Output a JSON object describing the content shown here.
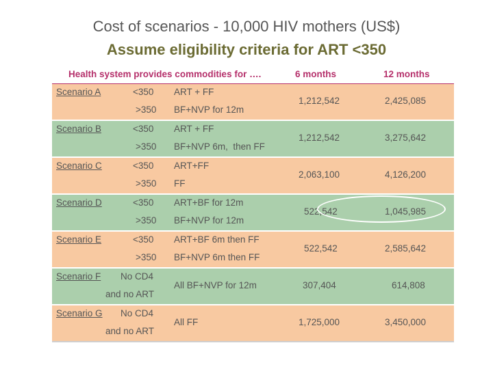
{
  "title": "Cost of scenarios - 10,000 HIV mothers (US$)",
  "subtitle": "Assume eligibility criteria for ART <350",
  "table": {
    "headers": {
      "provides": "Health system provides commodities for ….",
      "six": "6 months",
      "twelve": "12 months"
    },
    "rows": [
      {
        "name": "Scenario A",
        "cd4_top": "<350",
        "cd4_bottom": ">350",
        "reg_top": "ART + FF",
        "reg_bottom": "BF+NVP for 12m",
        "six": "1,212,542",
        "twelve": "2,425,085"
      },
      {
        "name": "Scenario B",
        "cd4_top": "<350",
        "cd4_bottom": ">350",
        "reg_top": "ART + FF",
        "reg_bottom": "BF+NVP 6m,  then FF",
        "six": "1,212,542",
        "twelve": "3,275,642"
      },
      {
        "name": "Scenario C",
        "cd4_top": "<350",
        "cd4_bottom": ">350",
        "reg_top": "ART+FF",
        "reg_bottom": "FF",
        "six": "2,063,100",
        "twelve": "4,126,200"
      },
      {
        "name": "Scenario D",
        "cd4_top": "<350",
        "cd4_bottom": ">350",
        "reg_top": "ART+BF for 12m",
        "reg_bottom": "BF+NVP for 12m",
        "six": "522,542",
        "twelve": "1,045,985"
      },
      {
        "name": "Scenario E",
        "cd4_top": "<350",
        "cd4_bottom": ">350",
        "reg_top": "ART+BF 6m then FF",
        "reg_bottom": "BF+NVP 6m then FF",
        "six": "522,542",
        "twelve": "2,585,642"
      },
      {
        "name": "Scenario F",
        "cd4_top": "No CD4",
        "cd4_bottom": "and no ART",
        "reg_single": "All BF+NVP for 12m",
        "six": "307,404",
        "twelve": "614,808"
      },
      {
        "name": "Scenario G",
        "cd4_top": "No CD4",
        "cd4_bottom": "and no ART",
        "reg_single": "All FF",
        "six": "1,725,000",
        "twelve": "3,450,000"
      }
    ]
  }
}
